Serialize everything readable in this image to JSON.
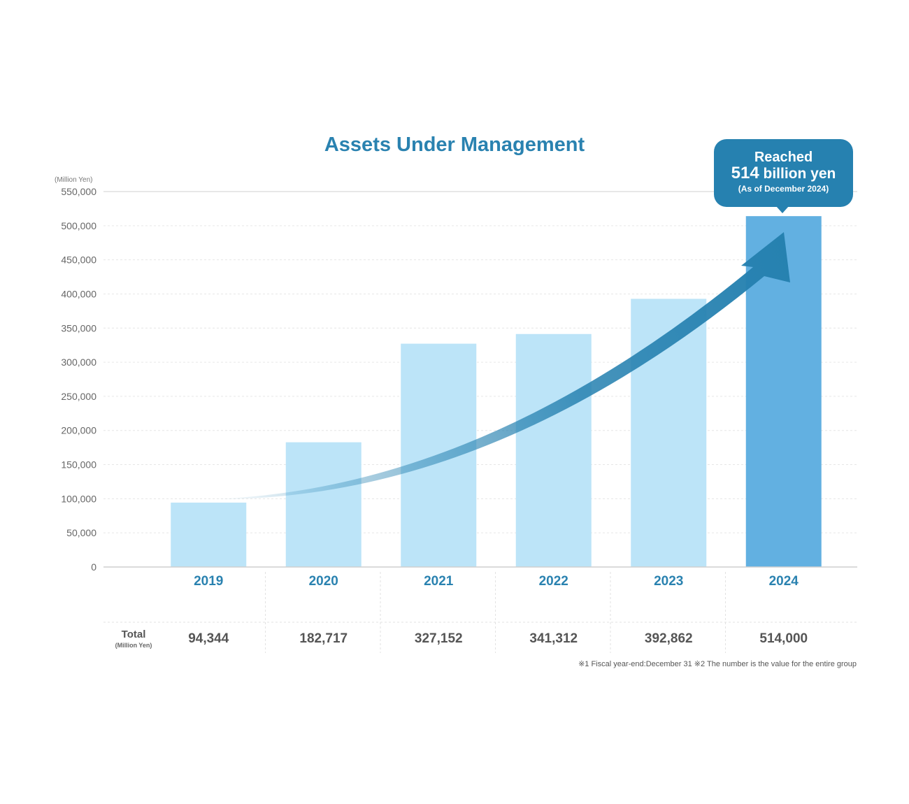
{
  "chart_data": {
    "type": "bar",
    "title": "Assets Under Management",
    "unit_label": "(Million Yen)",
    "categories": [
      "2019",
      "2020",
      "2021",
      "2022",
      "2023",
      "2024"
    ],
    "values": [
      94344,
      182717,
      327152,
      341312,
      392862,
      514000
    ],
    "value_labels": [
      "94,344",
      "182,717",
      "327,152",
      "341,312",
      "392,862",
      "514,000"
    ],
    "highlight_category": "2024",
    "ylim": [
      0,
      550000
    ],
    "y_ticks": [
      "0",
      "50,000",
      "100,000",
      "150,000",
      "200,000",
      "250,000",
      "300,000",
      "350,000",
      "400,000",
      "450,000",
      "500,000",
      "550,000"
    ],
    "grid": true,
    "colors": {
      "bar": "#bce4f8",
      "highlight_bar": "#62b0e1",
      "arrow": "#2681b0",
      "title": "#2a82b0",
      "year_label": "#2a82b0"
    },
    "annotation": {
      "line1": "Reached",
      "line2_number": "514",
      "line2_rest": " billion yen",
      "line3": "(As of December 2024)"
    },
    "table": {
      "row_label": "Total",
      "row_unit": "(Million Yen)"
    },
    "footnote": "※1  Fiscal year-end:December 31    ※2  The number is the value for the entire group"
  }
}
